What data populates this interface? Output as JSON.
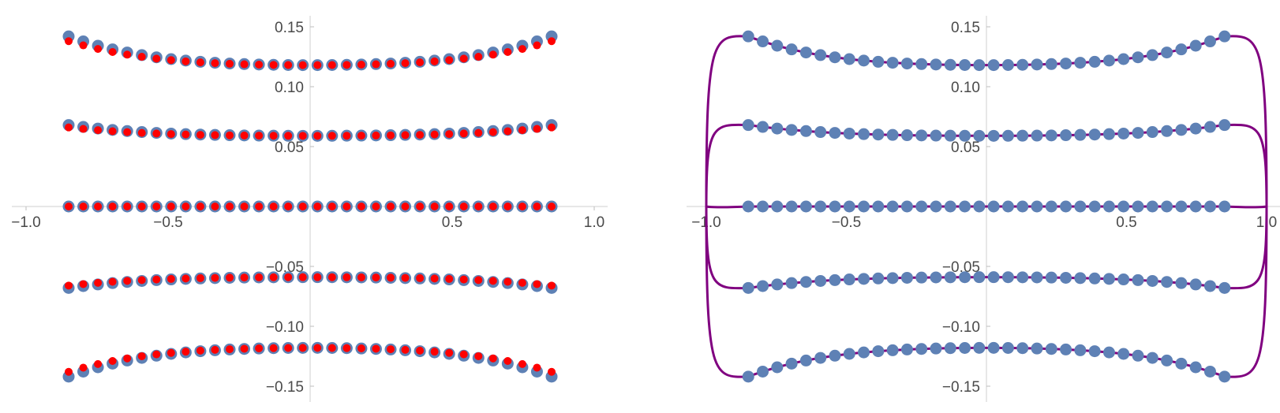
{
  "chart_data": [
    {
      "type": "scatter",
      "title": "",
      "xlabel": "",
      "ylabel": "",
      "xlim": [
        -1.0,
        1.0
      ],
      "ylim": [
        -0.15,
        0.15
      ],
      "x_ticks": [
        -1.0,
        -0.5,
        0.5,
        1.0
      ],
      "x_tick_labels": [
        "−1.0",
        "−0.5",
        "0.5",
        "1.0"
      ],
      "y_ticks": [
        0.15,
        0.1,
        0.05,
        -0.05,
        -0.1,
        -0.15
      ],
      "y_tick_labels": [
        "0.15",
        "0.10",
        "0.05",
        "−0.05",
        "−0.10",
        "−0.15"
      ],
      "grid": false,
      "axes": "centered at origin",
      "series": [
        {
          "marker": "large-circle",
          "color": "#5E81B5",
          "x_range": [
            -0.85,
            0.85
          ],
          "points_per_curve": 34,
          "curves": [
            {
              "y_at_center": 0.118,
              "y_at_ends": 0.142
            },
            {
              "y_at_center": 0.059,
              "y_at_ends": 0.068
            },
            {
              "y_at_center": 0.0,
              "y_at_ends": 0.0
            },
            {
              "y_at_center": -0.059,
              "y_at_ends": -0.068
            },
            {
              "y_at_center": -0.118,
              "y_at_ends": -0.142
            }
          ]
        },
        {
          "marker": "small-circle",
          "color": "#FF0000",
          "x_range": [
            -0.85,
            0.85
          ],
          "points_per_curve": 34,
          "curves": [
            {
              "y_at_center": 0.118,
              "y_at_ends": 0.138
            },
            {
              "y_at_center": 0.059,
              "y_at_ends": 0.066
            },
            {
              "y_at_center": 0.0,
              "y_at_ends": 0.0
            },
            {
              "y_at_center": -0.059,
              "y_at_ends": -0.066
            },
            {
              "y_at_center": -0.118,
              "y_at_ends": -0.138
            }
          ]
        }
      ]
    },
    {
      "type": "scatter",
      "title": "",
      "xlabel": "",
      "ylabel": "",
      "xlim": [
        -1.0,
        1.0
      ],
      "ylim": [
        -0.15,
        0.15
      ],
      "x_ticks": [
        -1.0,
        -0.5,
        0.5,
        1.0
      ],
      "x_tick_labels": [
        "−1.0",
        "−0.5",
        "0.5",
        "1.0"
      ],
      "y_ticks": [
        0.15,
        0.1,
        0.05,
        -0.05,
        -0.1,
        -0.15
      ],
      "y_tick_labels": [
        "0.15",
        "0.10",
        "0.05",
        "−0.05",
        "−0.10",
        "−0.15"
      ],
      "grid": false,
      "axes": "centered at origin",
      "series": [
        {
          "marker": "large-circle",
          "color": "#5E81B5",
          "x_range": [
            -0.85,
            0.85
          ],
          "points_per_curve": 34,
          "curves": [
            {
              "y_at_center": 0.118,
              "y_at_ends": 0.142
            },
            {
              "y_at_center": 0.059,
              "y_at_ends": 0.068
            },
            {
              "y_at_center": 0.0,
              "y_at_ends": 0.0
            },
            {
              "y_at_center": -0.059,
              "y_at_ends": -0.068
            },
            {
              "y_at_center": -0.118,
              "y_at_ends": -0.142
            }
          ]
        },
        {
          "marker": "line",
          "color": "#800080",
          "description_of_shape": "closed curves through x=-1 and x=1 at y=0, passing through each point row",
          "curves": [
            {
              "y_at_center": 0.118,
              "y_at_ends": 0.142
            },
            {
              "y_at_center": 0.059,
              "y_at_ends": 0.068
            },
            {
              "y_at_center": 0.0,
              "y_at_ends": 0.0
            },
            {
              "y_at_center": -0.059,
              "y_at_ends": -0.068
            },
            {
              "y_at_center": -0.118,
              "y_at_ends": -0.142
            }
          ]
        }
      ]
    }
  ]
}
